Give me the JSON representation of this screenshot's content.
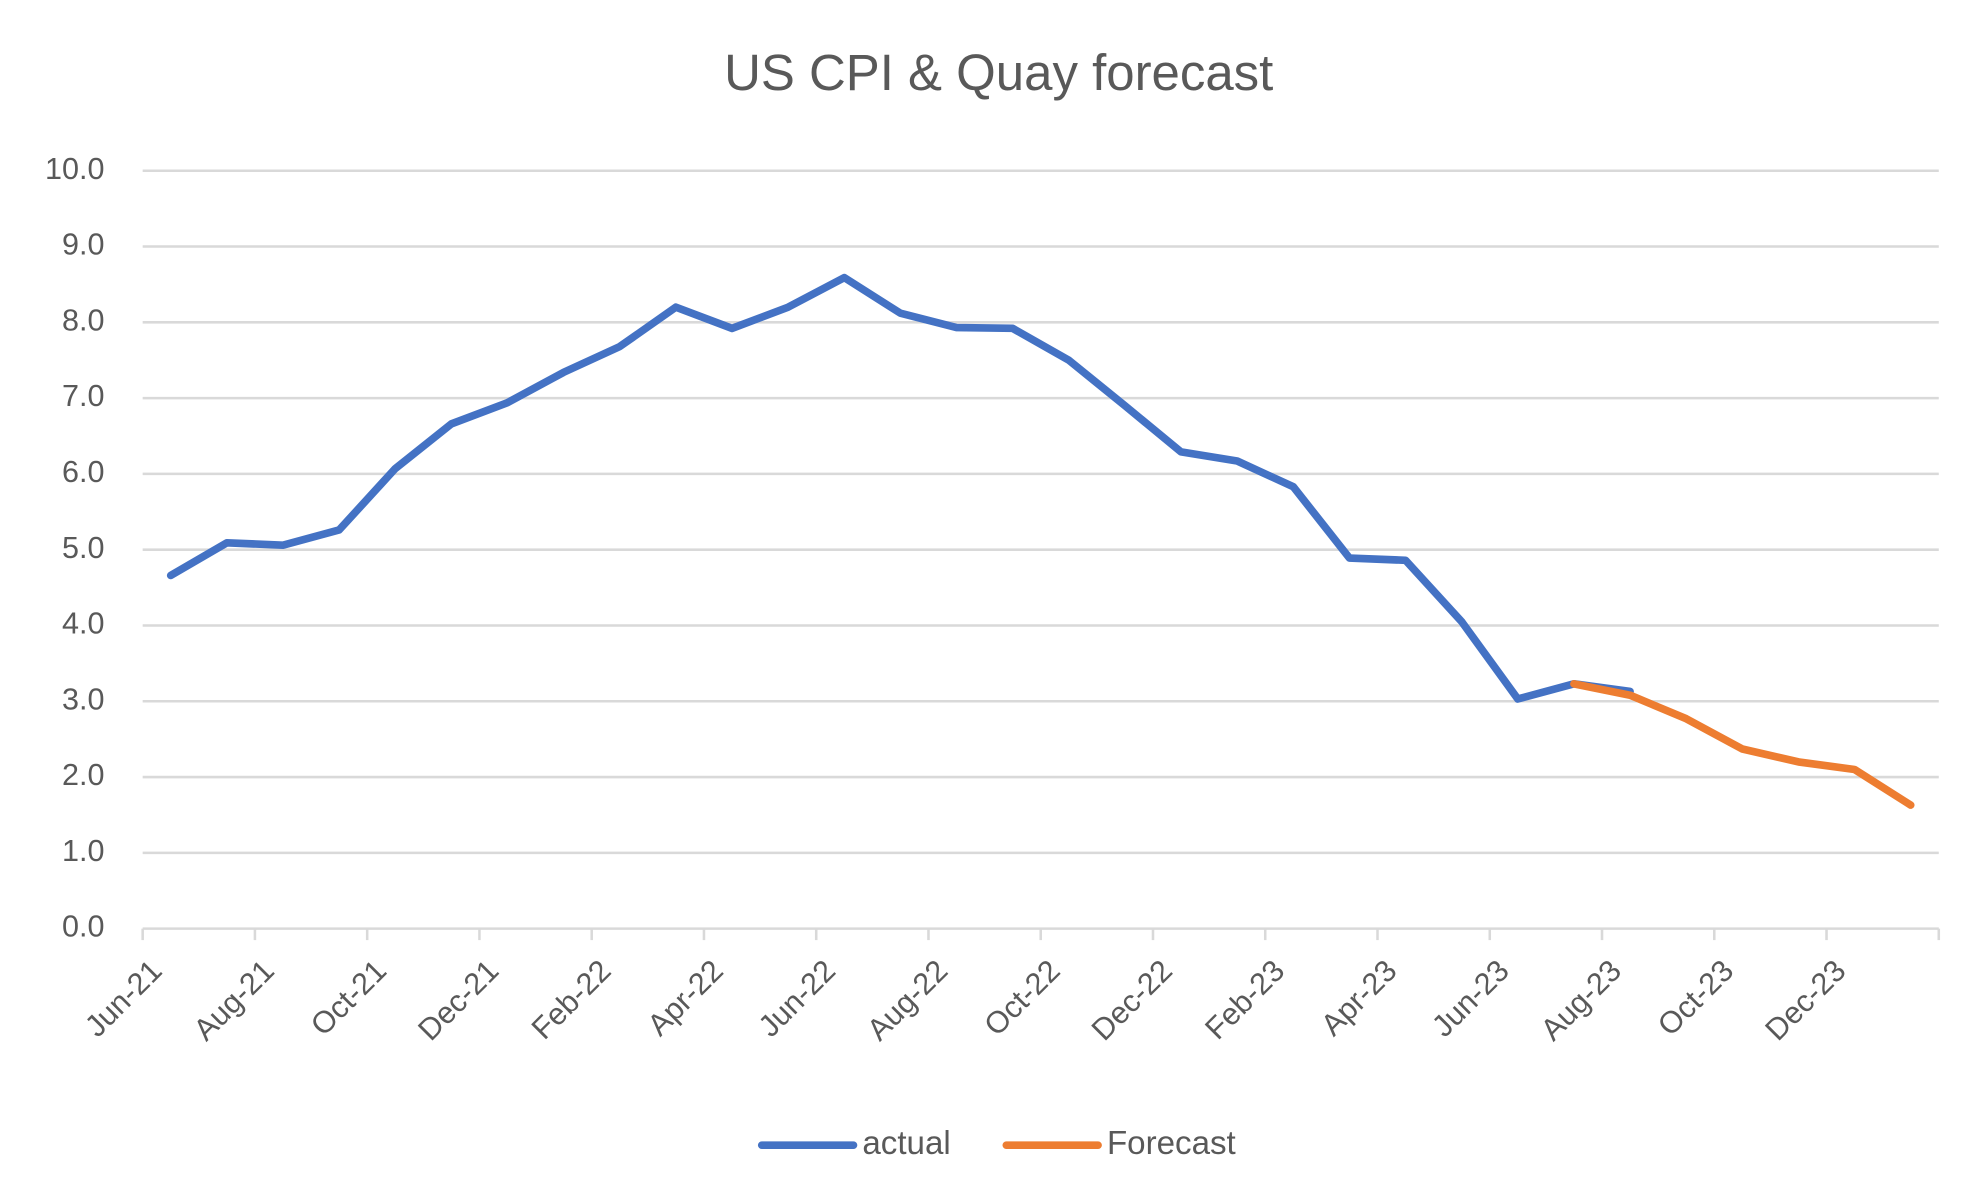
{
  "chart_data": {
    "type": "line",
    "title": "US CPI & Quay forecast",
    "categories": [
      "Jun-21",
      null,
      "Aug-21",
      null,
      "Oct-21",
      null,
      "Dec-21",
      null,
      "Feb-22",
      null,
      "Apr-22",
      null,
      "Jun-22",
      null,
      "Aug-22",
      null,
      "Oct-22",
      null,
      "Dec-22",
      null,
      "Feb-23",
      null,
      "Apr-23",
      null,
      "Jun-23",
      null,
      "Aug-23",
      null,
      "Oct-23",
      null,
      "Dec-23",
      null
    ],
    "series": [
      {
        "name": "actual",
        "color": "#4472c4",
        "values": [
          4.66,
          5.09,
          5.06,
          5.26,
          6.07,
          6.66,
          6.94,
          7.34,
          7.68,
          8.2,
          7.92,
          8.2,
          8.59,
          8.12,
          7.93,
          7.92,
          7.5,
          6.9,
          6.29,
          6.17,
          5.83,
          4.89,
          4.86,
          4.05,
          3.03,
          3.23,
          3.13,
          null,
          null,
          null,
          null,
          null
        ]
      },
      {
        "name": "Forecast",
        "color": "#ed7d31",
        "values": [
          null,
          null,
          null,
          null,
          null,
          null,
          null,
          null,
          null,
          null,
          null,
          null,
          null,
          null,
          null,
          null,
          null,
          null,
          null,
          null,
          null,
          null,
          null,
          null,
          null,
          3.23,
          3.08,
          2.77,
          2.37,
          2.2,
          2.1,
          1.63
        ]
      }
    ],
    "ylim": [
      0,
      10
    ],
    "yticks": [
      {
        "value": 0,
        "label": "0.0"
      },
      {
        "value": 1,
        "label": "1.0"
      },
      {
        "value": 2,
        "label": "2.0"
      },
      {
        "value": 3,
        "label": "3.0"
      },
      {
        "value": 4,
        "label": "4.0"
      },
      {
        "value": 5,
        "label": "5.0"
      },
      {
        "value": 6,
        "label": "6.0"
      },
      {
        "value": 7,
        "label": "7.0"
      },
      {
        "value": 8,
        "label": "8.0"
      },
      {
        "value": 9,
        "label": "9.0"
      },
      {
        "value": 10,
        "label": "10.0"
      }
    ],
    "grid": true,
    "legend": "bottom"
  }
}
